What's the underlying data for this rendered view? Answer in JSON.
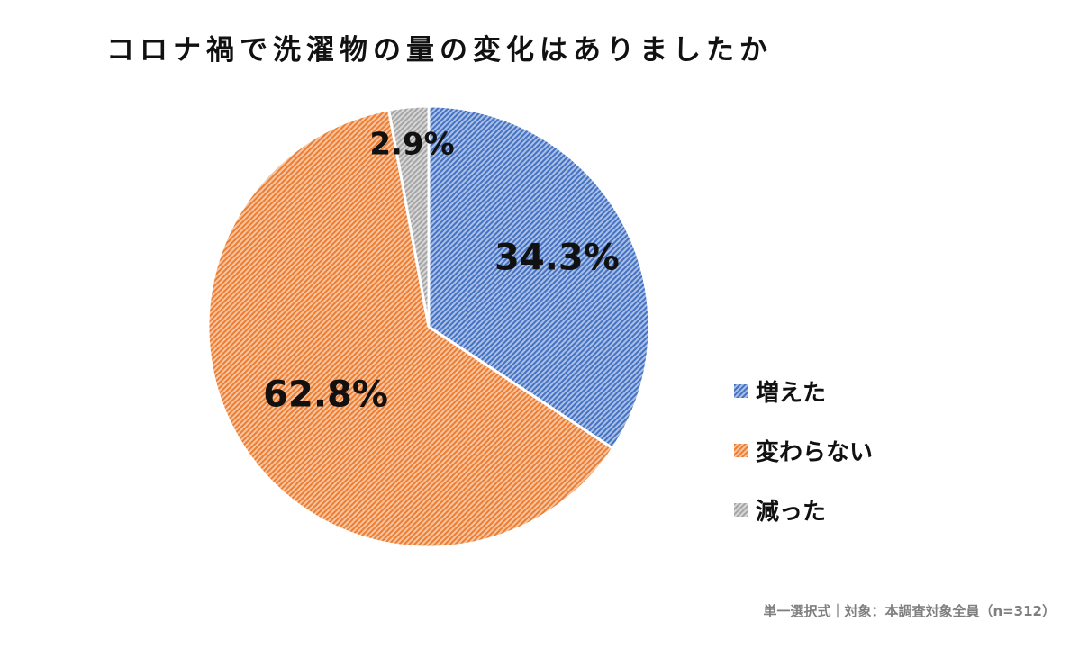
{
  "chart_data": {
    "type": "pie",
    "title": "コロナ禍で洗濯物の量の変化はありましたか",
    "categories": [
      "増えた",
      "変わらない",
      "減った"
    ],
    "values": [
      34.3,
      62.8,
      2.9
    ],
    "value_labels": [
      "34.3%",
      "62.8%",
      "2.9%"
    ],
    "colors": [
      "#4472c4",
      "#ed7d31",
      "#a5a5a5"
    ],
    "start_angle_deg": 0,
    "direction": "clockwise",
    "fill_style": "diagonal-hatch",
    "legend_position": "right"
  },
  "footnote": "単一選択式｜対象：本調査対象全員（n=312）"
}
